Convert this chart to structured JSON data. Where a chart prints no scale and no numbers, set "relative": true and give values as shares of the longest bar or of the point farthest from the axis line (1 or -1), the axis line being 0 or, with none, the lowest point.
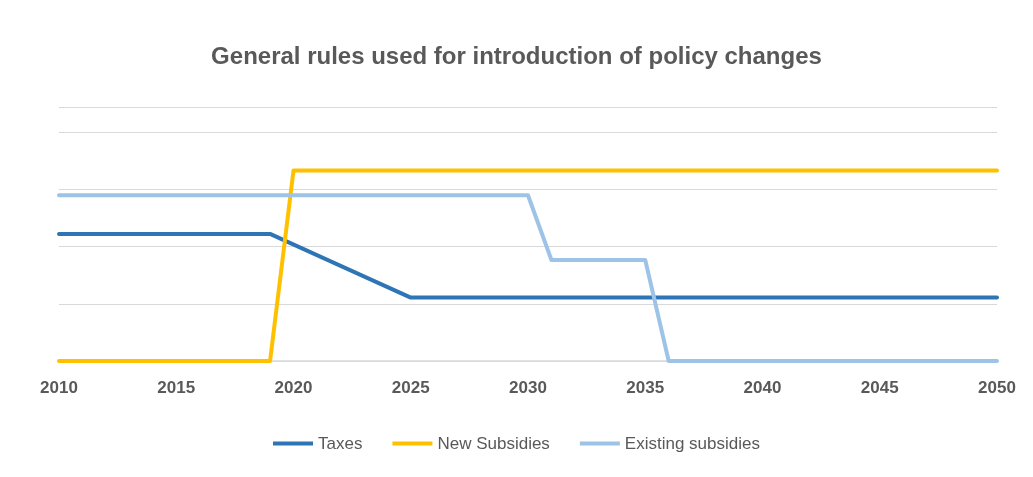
{
  "chart_data": {
    "type": "line",
    "title": "General rules used for introduction of policy changes",
    "relative": true,
    "xlim": [
      2010,
      2050
    ],
    "xticks": [
      2010,
      2015,
      2020,
      2025,
      2030,
      2035,
      2040,
      2045,
      2050
    ],
    "grid": "y",
    "legend": "bottom",
    "marker": "none",
    "line_style": "solid",
    "series": [
      {
        "name": "Taxes",
        "color": "#2e75b6",
        "x": [
          2010,
          2019,
          2025,
          2050
        ],
        "values": [
          0.667,
          0.667,
          0.333,
          0.333
        ]
      },
      {
        "name": "New Subsidies",
        "color": "#ffc000",
        "x": [
          2010,
          2019,
          2020,
          2050
        ],
        "values": [
          0,
          0,
          1,
          1
        ]
      },
      {
        "name": "Existing subsidies",
        "color": "#9dc3e6",
        "x": [
          2010,
          2030,
          2031,
          2035,
          2036,
          2050
        ],
        "values": [
          0.87,
          0.87,
          0.53,
          0.53,
          0,
          0
        ]
      }
    ]
  }
}
